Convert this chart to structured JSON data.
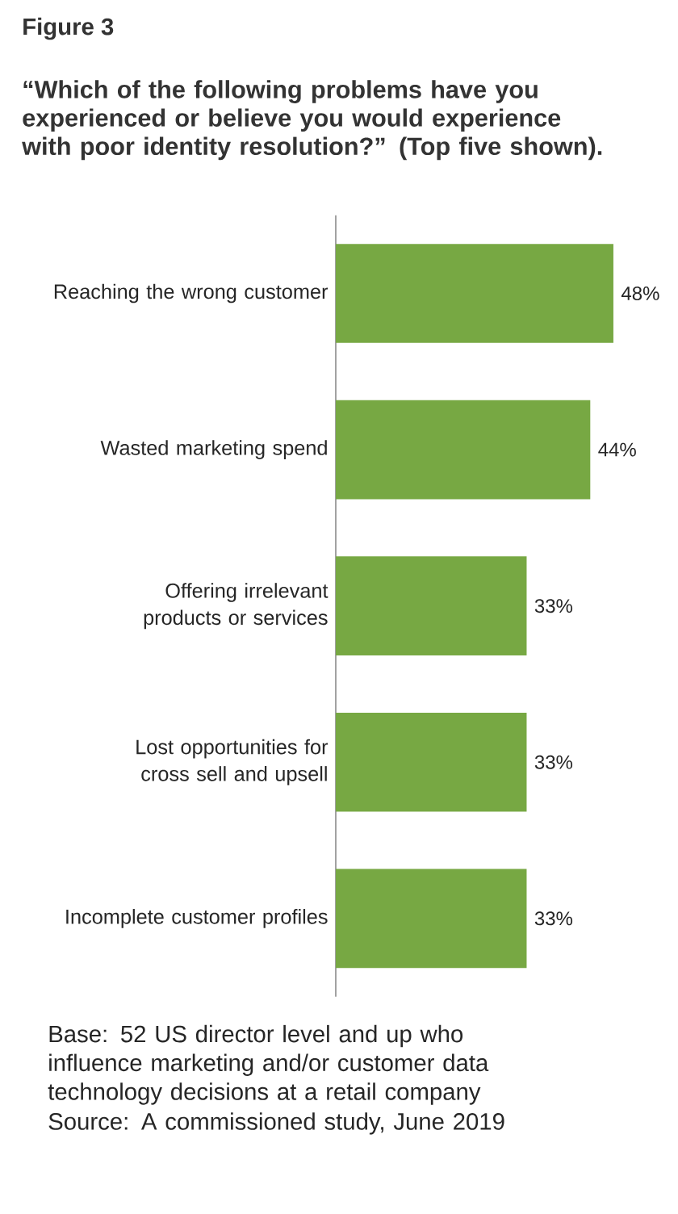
{
  "chart_data": {
    "type": "bar",
    "orientation": "horizontal",
    "title": "Figure 3",
    "subtitle": "“Which of the following problems have you experienced or believe you would experience with poor identity resolution?” (Top five shown).",
    "categories": [
      "Reaching the wrong customer",
      "Wasted marketing spend",
      "Offering irrelevant products or services",
      "Lost opportunities for cross sell and upsell",
      "Incomplete customer profiles"
    ],
    "values": [
      48,
      44,
      33,
      33,
      33
    ],
    "value_labels": [
      "48%",
      "44%",
      "33%",
      "33%",
      "33%"
    ],
    "color": "#77a843",
    "tick_labels": "y",
    "grid": false,
    "annotations": [
      "Base: 52 US director level and up who influence marketing and/or customer data technology decisions at a retail company",
      "Source: A commissioned study, June 2019"
    ]
  }
}
